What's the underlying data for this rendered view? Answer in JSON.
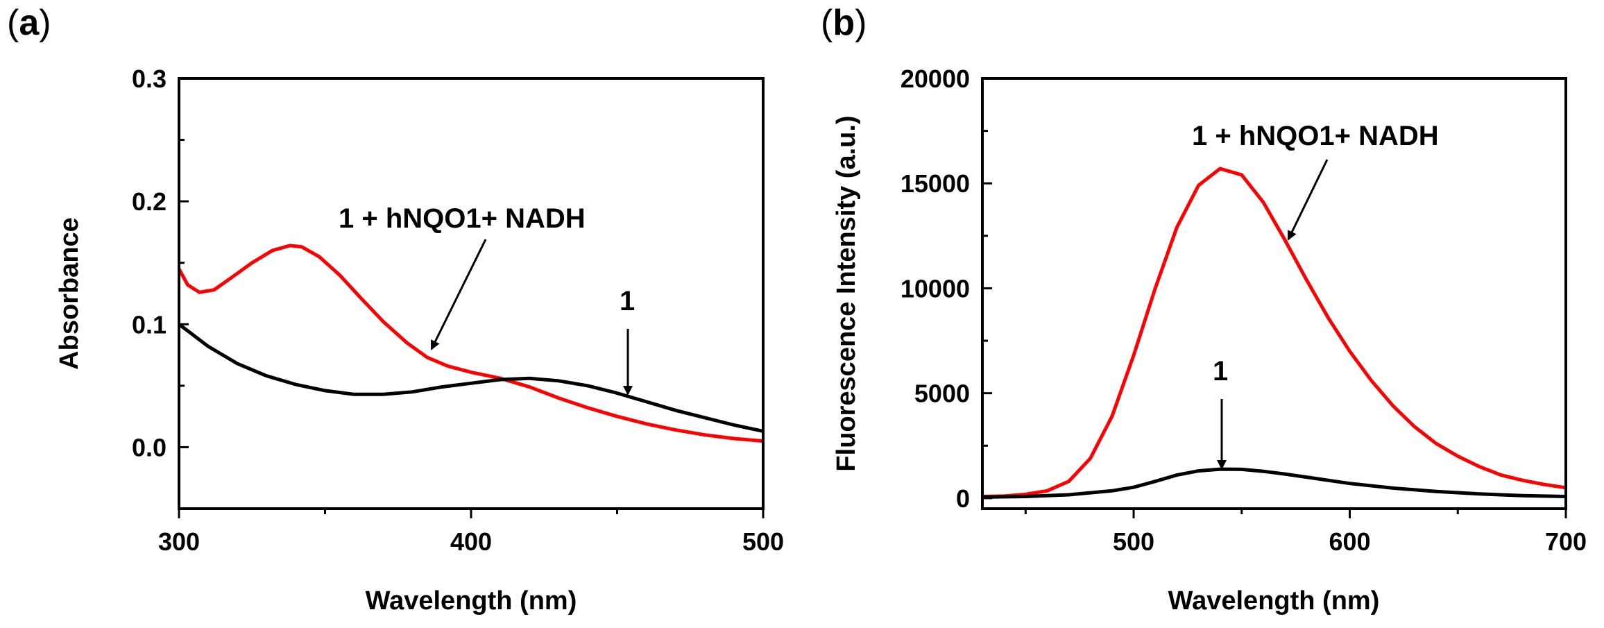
{
  "chart_data": [
    {
      "panel": "(a)",
      "panel_letter": "a",
      "type": "line",
      "title": "",
      "xlabel": "Wavelength (nm)",
      "ylabel": "Absorbance",
      "xlim": [
        300,
        500
      ],
      "ylim": [
        -0.05,
        0.3
      ],
      "xticks": [
        300,
        400,
        500
      ],
      "xtick_labels": [
        "300",
        "400",
        "500"
      ],
      "yticks": [
        0.0,
        0.1,
        0.2,
        0.3
      ],
      "ytick_labels": [
        "0.0",
        "0.1",
        "0.2",
        "0.3"
      ],
      "grid": false,
      "series": [
        {
          "name": "1 + hNQO1+ NADH",
          "color": "#ff0000",
          "x": [
            300,
            303,
            307,
            312,
            318,
            325,
            332,
            338,
            342,
            348,
            355,
            362,
            370,
            378,
            385,
            392,
            400,
            410,
            420,
            430,
            440,
            450,
            460,
            470,
            480,
            490,
            500
          ],
          "y": [
            0.145,
            0.132,
            0.126,
            0.128,
            0.138,
            0.15,
            0.16,
            0.164,
            0.163,
            0.155,
            0.14,
            0.122,
            0.102,
            0.085,
            0.073,
            0.066,
            0.061,
            0.056,
            0.049,
            0.04,
            0.032,
            0.025,
            0.019,
            0.014,
            0.01,
            0.007,
            0.005
          ]
        },
        {
          "name": "1",
          "color": "#000000",
          "x": [
            300,
            305,
            310,
            320,
            330,
            340,
            350,
            360,
            370,
            380,
            390,
            400,
            410,
            420,
            430,
            440,
            450,
            460,
            470,
            480,
            490,
            500
          ],
          "y": [
            0.1,
            0.091,
            0.082,
            0.068,
            0.058,
            0.051,
            0.046,
            0.043,
            0.043,
            0.045,
            0.049,
            0.052,
            0.055,
            0.056,
            0.054,
            0.05,
            0.044,
            0.037,
            0.03,
            0.024,
            0.018,
            0.013
          ]
        }
      ],
      "annotations": [
        {
          "text": "1 + hNQO1+ NADH",
          "target": "1 + hNQO1+ NADH"
        },
        {
          "text": "1",
          "target": "1"
        }
      ]
    },
    {
      "panel": "(b)",
      "panel_letter": "b",
      "type": "line",
      "title": "",
      "xlabel": "Wavelength (nm)",
      "ylabel": "Fluorescence Intensity (a.u.)",
      "xlim": [
        430,
        700
      ],
      "ylim": [
        -500,
        20000
      ],
      "xticks": [
        500,
        600,
        700
      ],
      "xtick_labels": [
        "500",
        "600",
        "700"
      ],
      "yticks": [
        0,
        5000,
        10000,
        15000,
        20000
      ],
      "ytick_labels": [
        "0",
        "5000",
        "10000",
        "15000",
        "20000"
      ],
      "grid": false,
      "series": [
        {
          "name": "1 + hNQO1+ NADH",
          "color": "#ff0000",
          "x": [
            430,
            440,
            450,
            460,
            470,
            480,
            490,
            500,
            510,
            520,
            530,
            540,
            550,
            560,
            570,
            580,
            590,
            600,
            610,
            620,
            630,
            640,
            650,
            660,
            670,
            680,
            690,
            700
          ],
          "y": [
            80,
            100,
            180,
            350,
            800,
            1900,
            3900,
            6800,
            10000,
            12900,
            14900,
            15700,
            15400,
            14100,
            12300,
            10400,
            8600,
            7000,
            5600,
            4400,
            3400,
            2600,
            2000,
            1500,
            1100,
            850,
            650,
            500
          ]
        },
        {
          "name": "1",
          "color": "#000000",
          "x": [
            430,
            450,
            470,
            490,
            500,
            510,
            520,
            530,
            540,
            550,
            560,
            570,
            580,
            590,
            600,
            620,
            640,
            660,
            680,
            700
          ],
          "y": [
            50,
            80,
            160,
            350,
            520,
            800,
            1100,
            1300,
            1380,
            1370,
            1280,
            1150,
            1000,
            850,
            700,
            480,
            320,
            200,
            120,
            80
          ]
        }
      ],
      "annotations": [
        {
          "text": "1 + hNQO1+ NADH",
          "target": "1 + hNQO1+ NADH"
        },
        {
          "text": "1",
          "target": "1"
        }
      ]
    }
  ]
}
